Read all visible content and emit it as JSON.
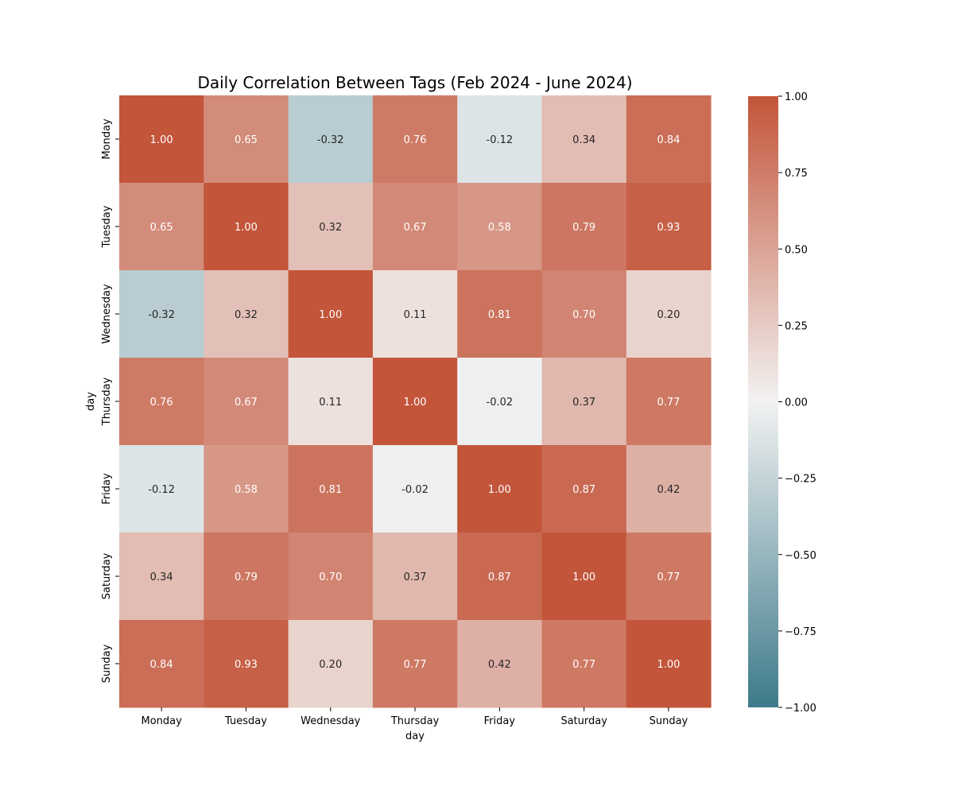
{
  "chart_data": {
    "type": "heatmap",
    "title": "Daily Correlation Between Tags (Feb 2024 - June 2024)",
    "xlabel": "day",
    "ylabel": "day",
    "x_categories": [
      "Monday",
      "Tuesday",
      "Wednesday",
      "Thursday",
      "Friday",
      "Saturday",
      "Sunday"
    ],
    "y_categories": [
      "Monday",
      "Tuesday",
      "Wednesday",
      "Thursday",
      "Friday",
      "Saturday",
      "Sunday"
    ],
    "values": [
      [
        1.0,
        0.65,
        -0.32,
        0.76,
        -0.12,
        0.34,
        0.84
      ],
      [
        0.65,
        1.0,
        0.32,
        0.67,
        0.58,
        0.79,
        0.93
      ],
      [
        -0.32,
        0.32,
        1.0,
        0.11,
        0.81,
        0.7,
        0.2
      ],
      [
        0.76,
        0.67,
        0.11,
        1.0,
        -0.02,
        0.37,
        0.77
      ],
      [
        -0.12,
        0.58,
        0.81,
        -0.02,
        1.0,
        0.87,
        0.42
      ],
      [
        0.34,
        0.79,
        0.7,
        0.37,
        0.87,
        1.0,
        0.77
      ],
      [
        0.84,
        0.93,
        0.2,
        0.77,
        0.42,
        0.77,
        1.0
      ]
    ],
    "value_format": "2 decimals",
    "colorbar": {
      "range": [
        -1.0,
        1.0
      ],
      "ticks": [
        1.0,
        0.75,
        0.5,
        0.25,
        0.0,
        -0.25,
        -0.5,
        -0.75,
        -1.0
      ],
      "tick_labels": [
        "1.00",
        "0.75",
        "0.50",
        "0.25",
        "0.00",
        "−0.25",
        "−0.50",
        "−0.75",
        "−1.00"
      ],
      "colors": {
        "low": "#3d7a8a",
        "mid": "#f2f2f2",
        "high": "#c3553a"
      }
    }
  }
}
